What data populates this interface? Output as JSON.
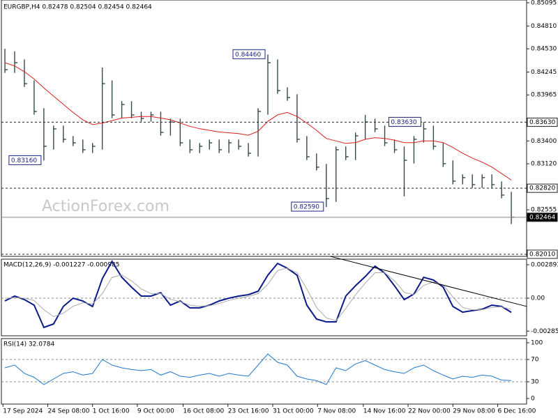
{
  "header": "EURGBP,H4  0.82478 0.82504 0.82454 0.82464",
  "watermark": "ActionForex.com",
  "chart_data": [
    {
      "type": "hlc",
      "color": "#34494a",
      "xlim": [
        -0.36,
        53.57
      ],
      "ylim": [
        0.81984,
        0.85129
      ],
      "yticks": [
        0.85095,
        {
          "value": 0.8481,
          "label": "0.84810"
        },
        {
          "value": 0.8453,
          "label": "0.84530"
        },
        0.84245,
        0.83965,
        {
          "value": 0.834,
          "label": "0.83400"
        },
        {
          "value": 0.8312,
          "label": "0.83120"
        },
        0.82555
      ],
      "high": [
        0.8453,
        0.845,
        0.844,
        0.84143,
        0.83802,
        0.83588,
        0.83588,
        0.8346,
        0.83417,
        0.83374,
        0.843,
        0.84143,
        0.83887,
        0.83887,
        0.83759,
        0.83759,
        0.83759,
        0.83673,
        0.83673,
        0.83417,
        0.83374,
        0.83417,
        0.83417,
        0.83417,
        0.83417,
        0.83374,
        0.83802,
        0.8446,
        0.844,
        0.84058,
        0.83973,
        0.8346,
        0.83246,
        0.83118,
        0.83332,
        0.83332,
        0.83503,
        0.8372,
        0.83673,
        0.83588,
        0.83417,
        0.83332,
        0.8346,
        0.8363,
        0.83588,
        0.83374,
        0.83161,
        0.8299,
        0.8299,
        0.8299,
        0.8299,
        0.82904,
        0.82776
      ],
      "low": [
        0.84235,
        0.84235,
        0.84063,
        0.83722,
        0.8316,
        0.83294,
        0.8338,
        0.83337,
        0.83252,
        0.83252,
        0.83294,
        0.83679,
        0.83679,
        0.83679,
        0.83636,
        0.83636,
        0.83465,
        0.83465,
        0.83337,
        0.83252,
        0.83252,
        0.83294,
        0.83252,
        0.83252,
        0.83294,
        0.83209,
        0.83209,
        0.83722,
        0.83978,
        0.83893,
        0.8338,
        0.83166,
        0.83038,
        0.8259,
        0.82653,
        0.83166,
        0.83166,
        0.83423,
        0.83508,
        0.83337,
        0.83252,
        0.8272,
        0.83123,
        0.8338,
        0.83294,
        0.83081,
        0.82867,
        0.82867,
        0.82824,
        0.82824,
        0.82824,
        0.82696,
        0.8238
      ],
      "values": [
        0.84275,
        0.8436,
        0.84103,
        0.83762,
        0.83334,
        0.83548,
        0.8342,
        0.83377,
        0.83292,
        0.83334,
        0.84103,
        0.83719,
        0.83847,
        0.83719,
        0.83676,
        0.83719,
        0.83505,
        0.83633,
        0.83377,
        0.83292,
        0.83334,
        0.83377,
        0.83292,
        0.83377,
        0.83334,
        0.83249,
        0.83762,
        0.8436,
        0.84018,
        0.83933,
        0.8342,
        0.83206,
        0.83078,
        0.82693,
        0.83292,
        0.83206,
        0.83463,
        0.83633,
        0.83548,
        0.83377,
        0.83292,
        0.83163,
        0.8342,
        0.83548,
        0.83334,
        0.83121,
        0.82907,
        0.8295,
        0.82864,
        0.8295,
        0.82864,
        0.82736,
        0.82464
      ],
      "ma": {
        "color": "#d91e1e",
        "values": [
          0.8436,
          0.8432,
          0.8425,
          0.8416,
          0.8405,
          0.8395,
          0.8385,
          0.8375,
          0.8366,
          0.836,
          0.8362,
          0.8365,
          0.8368,
          0.8369,
          0.837,
          0.837,
          0.8368,
          0.8366,
          0.8362,
          0.8358,
          0.8355,
          0.8353,
          0.8351,
          0.835,
          0.8349,
          0.8347,
          0.8352,
          0.8364,
          0.8372,
          0.8375,
          0.837,
          0.8362,
          0.8353,
          0.8343,
          0.834,
          0.8337,
          0.8338,
          0.8342,
          0.8344,
          0.8343,
          0.8341,
          0.8338,
          0.8338,
          0.834,
          0.834,
          0.8338,
          0.8332,
          0.8325,
          0.8319,
          0.8314,
          0.8308,
          0.83,
          0.8292
        ]
      },
      "levels": [
        {
          "value": 0.8363,
          "label": "0.83630",
          "style": "dashed"
        },
        {
          "value": 0.8282,
          "label": "0.82820",
          "style": "dashed"
        },
        {
          "value": 0.82464,
          "label": "0.82464",
          "style": "current"
        },
        {
          "value": 0.8201,
          "label": "0.82010",
          "style": "dashed"
        }
      ],
      "annotations": [
        {
          "x": 27,
          "value": 0.8446,
          "label": "0.84460"
        },
        {
          "x": 4,
          "value": 0.8316,
          "label": "0.83160"
        },
        {
          "x": 33,
          "value": 0.8259,
          "label": "0.82590"
        },
        {
          "x": 43,
          "value": 0.8363,
          "label": "0.83630"
        }
      ]
    },
    {
      "type": "macd",
      "title": "MACD(12,26,9) -0.001227 -0.000985",
      "ylim": [
        -0.003255,
        0.003375
      ],
      "yticks": [
        0.002893,
        {
          "value": 0,
          "label": "0.00"
        },
        -0.002852
      ],
      "zero_line": true,
      "series": [
        {
          "color": "#0b1a8a",
          "values": [
            -0.00024,
            0.00018,
            -0.00012,
            -0.0006,
            -0.00253,
            -0.00223,
            -0.00072,
            0,
            -0.00024,
            -0.00072,
            0.00169,
            0.00319,
            0.00181,
            0.00096,
            0.00018,
            0.00018,
            0.00048,
            -0.0006,
            -0.00024,
            -0.00084,
            -0.00084,
            -0.0006,
            -0.00024,
            0,
            0.00018,
            0.0003,
            0.0006,
            0.00199,
            0.00301,
            0.00259,
            0.00199,
            -0.0006,
            -0.00181,
            -0.00205,
            -0.00205,
            0.00018,
            0.00108,
            0.00187,
            0.00277,
            0.00217,
            0.00108,
            -0.00012,
            0.00036,
            0.00181,
            0.00157,
            0.00096,
            -0.00072,
            -0.00121,
            -0.00108,
            -0.00096,
            -0.0006,
            -0.00072,
            -0.001227
          ]
        },
        {
          "color": "#a9a9a9",
          "values": [
            0,
            5e-05,
            0,
            -0.0002,
            -0.001,
            -0.0016,
            -0.0013,
            -0.0007,
            -0.0004,
            -0.0005,
            0.0004,
            0.0018,
            0.002,
            0.0015,
            0.0008,
            0.0004,
            0.0004,
            -0.0001,
            -0.0003,
            -0.0006,
            -0.0007,
            -0.00065,
            -0.00045,
            -0.0002,
            0,
            0.00015,
            0.0004,
            0.0012,
            0.0024,
            0.0026,
            0.0022,
            0.0008,
            -0.0008,
            -0.0017,
            -0.00195,
            -0.0009,
            0.0003,
            0.0013,
            0.0022,
            0.0022,
            0.0015,
            0.0005,
            0.0003,
            0.0011,
            0.0014,
            0.00115,
            0.0001,
            -0.0008,
            -0.001,
            -0.001,
            -0.0008,
            -0.00075,
            -0.000985
          ]
        }
      ],
      "trendline": {
        "x": [
          33.4,
          53.6
        ],
        "values": [
          0.00362,
          -0.00072
        ]
      }
    },
    {
      "type": "rsi",
      "title": "RSI(14) 32.0784",
      "color": "#1e78d2",
      "ylim": [
        -10,
        107.5
      ],
      "yticks": [
        100,
        70,
        30,
        0
      ],
      "levels": [
        70,
        30
      ],
      "values": [
        55,
        60,
        45,
        38,
        25,
        35,
        45,
        48,
        42,
        45,
        70,
        60,
        55,
        52,
        50,
        52,
        42,
        48,
        40,
        38,
        42,
        45,
        40,
        45,
        42,
        40,
        60,
        80,
        65,
        60,
        40,
        35,
        32,
        25,
        55,
        50,
        62,
        68,
        60,
        52,
        48,
        45,
        55,
        60,
        50,
        42,
        35,
        40,
        38,
        42,
        40,
        33,
        32.0784
      ],
      "xticks": [
        {
          "value": -0.2,
          "label": "17 Sep 2024"
        },
        {
          "value": 4.4,
          "label": "24 Sep 08:00"
        },
        {
          "value": 9,
          "label": "1 Oct 16:00"
        },
        {
          "value": 13.6,
          "label": "9 Oct 00:00"
        },
        {
          "value": 18.3,
          "label": "16 Oct 08:00"
        },
        {
          "value": 22.9,
          "label": "23 Oct 16:00"
        },
        {
          "value": 27.5,
          "label": "31 Oct 00:00"
        },
        {
          "value": 32.1,
          "label": "7 Nov 08:00"
        },
        {
          "value": 36.8,
          "label": "14 Nov 16:00"
        },
        {
          "value": 41.4,
          "label": "22 Nov 00:00"
        },
        {
          "value": 46,
          "label": "29 Nov 08:00"
        },
        {
          "value": 50.6,
          "label": "6 Dec 16:00"
        }
      ]
    }
  ]
}
